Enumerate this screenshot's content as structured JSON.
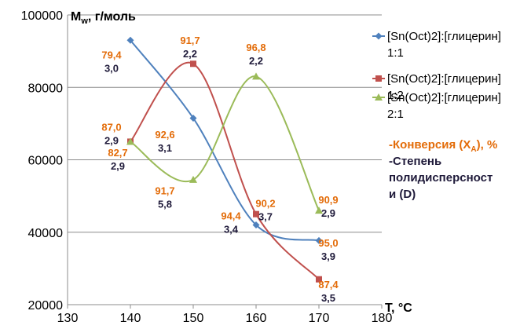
{
  "chart_data": {
    "type": "line",
    "ylabel_main": "M",
    "ylabel_sub": "w",
    "ylabel_rest": ", г/моль",
    "xlabel": "T, °C",
    "xlim": [
      130,
      180
    ],
    "ylim": [
      20000,
      100000
    ],
    "xticks": [
      "130",
      "140",
      "150",
      "160",
      "170",
      "180"
    ],
    "yticks": [
      "20000",
      "40000",
      "60000",
      "80000",
      "100000"
    ],
    "legend_position": "right",
    "series": [
      {
        "name_line1": "[Sn(Oct)2]:[глицерин]",
        "name_line2": "1:1",
        "color": "#4f81bd",
        "marker": "diamond",
        "points": [
          {
            "x": 140,
            "y": 93000
          },
          {
            "x": 150,
            "y": 71500
          },
          {
            "x": 160,
            "y": 42000
          },
          {
            "x": 170,
            "y": 37700
          }
        ]
      },
      {
        "name_line1": "[Sn(Oct)2]:[глицерин]",
        "name_line2": "1:2",
        "color": "#c0504d",
        "marker": "square",
        "points": [
          {
            "x": 140,
            "y": 65000
          },
          {
            "x": 150,
            "y": 86500
          },
          {
            "x": 160,
            "y": 45000
          },
          {
            "x": 170,
            "y": 27000
          }
        ]
      },
      {
        "name_line1": "[Sn(Oct)2]:[глицерин]",
        "name_line2": "2:1",
        "color": "#9bbb59",
        "marker": "triangle",
        "points": [
          {
            "x": 140,
            "y": 65000
          },
          {
            "x": 150,
            "y": 54500
          },
          {
            "x": 160,
            "y": 83000
          },
          {
            "x": 170,
            "y": 46000
          }
        ]
      }
    ],
    "annotations": [
      {
        "conv": "79,4",
        "disp": "3,0",
        "x": 137,
        "y": 88000
      },
      {
        "conv": "87,0",
        "disp": "2,9",
        "x": 137,
        "y": 68000
      },
      {
        "conv": "82,7",
        "disp": "2,9",
        "x": 138,
        "y": 61000
      },
      {
        "conv": "91,7",
        "disp": "2,2",
        "x": 149.5,
        "y": 92000
      },
      {
        "conv": "92,6",
        "disp": "3,1",
        "x": 145.5,
        "y": 66000
      },
      {
        "conv": "91,7",
        "disp": "5,8",
        "x": 145.5,
        "y": 50500
      },
      {
        "conv": "96,8",
        "disp": "2,2",
        "x": 160,
        "y": 90000
      },
      {
        "conv": "90,2",
        "disp": "3,7",
        "x": 161.5,
        "y": 47000
      },
      {
        "conv": "94,4",
        "disp": "3,4",
        "x": 156,
        "y": 43500
      },
      {
        "conv": "90,9",
        "disp": "2,9",
        "x": 171.5,
        "y": 48000
      },
      {
        "conv": "95,0",
        "disp": "3,9",
        "x": 171.5,
        "y": 36000
      },
      {
        "conv": "87,4",
        "disp": "3,5",
        "x": 171.5,
        "y": 24500
      }
    ],
    "note_conversion": "-Конверсия (X",
    "note_conversion_sub": "A",
    "note_conversion_end": "), %",
    "note_dispersity": [
      "-Степень",
      "полидисперсност",
      "и (D)"
    ]
  }
}
